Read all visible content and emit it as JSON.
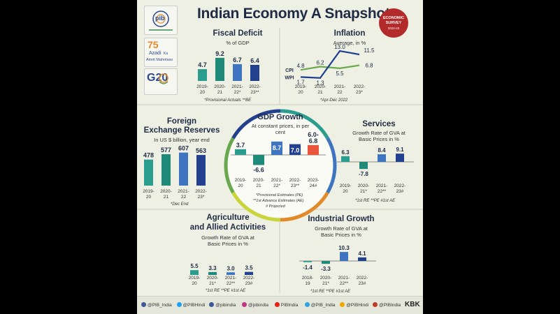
{
  "header": {
    "title": "Indian Economy A Snapshot"
  },
  "logos": {
    "pib": "pib",
    "azadi_num": "75",
    "azadi_line1": "Azadi",
    "azadi_ka": "Ka",
    "azadi_line2": "Amrit Mahotsav",
    "g20": "G20",
    "survey_line1": "ECONOMIC",
    "survey_line2": "SURVEY",
    "survey_year": "2022-23"
  },
  "chart_data": [
    {
      "id": "fiscal",
      "type": "bar",
      "title": "Fiscal Deficit",
      "subtitle": "% of GDP",
      "categories": [
        [
          "2019-",
          "20"
        ],
        [
          "2020-",
          "21"
        ],
        [
          "2021-",
          "22*"
        ],
        [
          "2022-",
          "23**"
        ]
      ],
      "values": [
        4.7,
        9.2,
        6.7,
        6.4
      ],
      "labels": [
        "4.7",
        "9.2",
        "6.7",
        "6.4"
      ],
      "colors": [
        "#2a9d8f",
        "#1f8a7a",
        "#3f74c0",
        "#23408e"
      ],
      "note": "*Provisional Actuals **BE"
    },
    {
      "id": "inflation",
      "type": "line",
      "title": "Inflation",
      "subtitle": "Average, in %",
      "categories": [
        [
          "2019-",
          "20"
        ],
        [
          "2020-",
          "21"
        ],
        [
          "2021-",
          "22"
        ],
        [
          "2022-",
          "23*"
        ]
      ],
      "series": [
        {
          "name": "CPI",
          "values": [
            4.8,
            6.2,
            5.5,
            6.8
          ],
          "labels": [
            "4.8",
            "6.2",
            "5.5",
            "6.8"
          ],
          "color": "#6aa84f"
        },
        {
          "name": "WPI",
          "values": [
            1.7,
            1.3,
            13.0,
            11.5
          ],
          "labels": [
            "1.7",
            "1.3",
            "13.0",
            "11.5"
          ],
          "color": "#1d3f8f"
        }
      ],
      "ylim": [
        0,
        14
      ],
      "note": "*Apr-Dec 2022"
    },
    {
      "id": "gdp",
      "type": "bar",
      "title": "GDP Growth",
      "subtitle": "At constant prices, in per cent",
      "categories": [
        [
          "2019-",
          "20"
        ],
        [
          "2020-",
          "21"
        ],
        [
          "2021-",
          "22*"
        ],
        [
          "2022-",
          "23**"
        ],
        [
          "2023-",
          "24#"
        ]
      ],
      "values": [
        3.7,
        -6.6,
        8.7,
        7.0,
        6.4
      ],
      "labels": [
        "3.7",
        "-6.6",
        "8.7",
        "7.0",
        "6.0-6.8"
      ],
      "colors": [
        "#2a9d8f",
        "#1f8a7a",
        "#3f74c0",
        "#23408e",
        "#e9553b"
      ],
      "notes": [
        "*Provisional Estimates (PE)",
        "**1st Advance Estimates (AE)",
        "# Projected"
      ]
    },
    {
      "id": "forex",
      "type": "bar",
      "title": "Foreign Exchange Reserves",
      "title_lines": [
        "Foreign",
        "Exchange Reserves"
      ],
      "subtitle": "In US $ billion, year end",
      "categories": [
        [
          "2019-",
          "20"
        ],
        [
          "2020-",
          "21"
        ],
        [
          "2021-",
          "22"
        ],
        [
          "2022-",
          "23*"
        ]
      ],
      "values": [
        478,
        577,
        607,
        563
      ],
      "labels": [
        "478",
        "577",
        "607",
        "563"
      ],
      "colors": [
        "#2a9d8f",
        "#1f8a7a",
        "#3f74c0",
        "#23408e"
      ],
      "note": "*Dec End"
    },
    {
      "id": "services",
      "type": "bar",
      "title": "Services",
      "subtitle": "Growth Rate of GVA at Basic Prices in %",
      "subtitle_lines": [
        "Growth Rate of GVA at",
        "Basic Prices in %"
      ],
      "categories": [
        [
          "2019-",
          "20"
        ],
        [
          "2020-",
          "21*"
        ],
        [
          "2021-",
          "22**"
        ],
        [
          "2022-",
          "23#"
        ]
      ],
      "values": [
        6.3,
        -7.8,
        8.4,
        9.1
      ],
      "labels": [
        "6.3",
        "-7.8",
        "8.4",
        "9.1"
      ],
      "colors": [
        "#2a9d8f",
        "#1f8a7a",
        "#3f74c0",
        "#23408e"
      ],
      "note": "*1st RE    **PE  #1st AE"
    },
    {
      "id": "agri",
      "type": "bar",
      "title": "Agriculture and Allied Activities",
      "title_lines": [
        "Agriculture",
        "and Allied Activities"
      ],
      "subtitle": "Growth Rate of GVA at Basic Prices in %",
      "subtitle_lines": [
        "Growth Rate of GVA at",
        "Basic Prices in %"
      ],
      "categories": [
        [
          "2019-",
          "20"
        ],
        [
          "2020-",
          "21*"
        ],
        [
          "2021-",
          "22**"
        ],
        [
          "2022-",
          "23#"
        ]
      ],
      "values": [
        5.5,
        3.3,
        3.0,
        3.5
      ],
      "labels": [
        "5.5",
        "3.3",
        "3.0",
        "3.5"
      ],
      "colors": [
        "#2a9d8f",
        "#1f8a7a",
        "#3f74c0",
        "#23408e"
      ],
      "note": "*1st RE    **PE  #1st AE"
    },
    {
      "id": "industrial",
      "type": "bar",
      "title": "Industrial Growth",
      "subtitle": "Growth Rate of GVA at Basic Prices in %",
      "subtitle_lines": [
        "Growth Rate of GVA at",
        "Basic Prices in %"
      ],
      "categories": [
        [
          "2018-",
          "19"
        ],
        [
          "2020-",
          "21*"
        ],
        [
          "2021-",
          "22**"
        ],
        [
          "2022-",
          "23#"
        ]
      ],
      "values": [
        -1.4,
        -3.3,
        10.3,
        4.1
      ],
      "labels": [
        "-1.4",
        "-3.3",
        "10.3",
        "4.1"
      ],
      "colors": [
        "#2a9d8f",
        "#1f8a7a",
        "#3f74c0",
        "#23408e"
      ],
      "note": "*1st RE    **PE  #1st AE"
    }
  ],
  "footer": {
    "handles": [
      "@PIB_India",
      "@PIBHindi",
      "@pibindia",
      "@pibindia",
      "PIBIndia",
      "@PIB_India",
      "@PIBHindi",
      "@PIBIndia"
    ],
    "handle_colors": [
      "#3b5998",
      "#1da1f2",
      "#3b5998",
      "#c13584",
      "#e62117",
      "#2ca5e0",
      "#f0a500",
      "#c0392b"
    ],
    "credit": "KBK"
  }
}
